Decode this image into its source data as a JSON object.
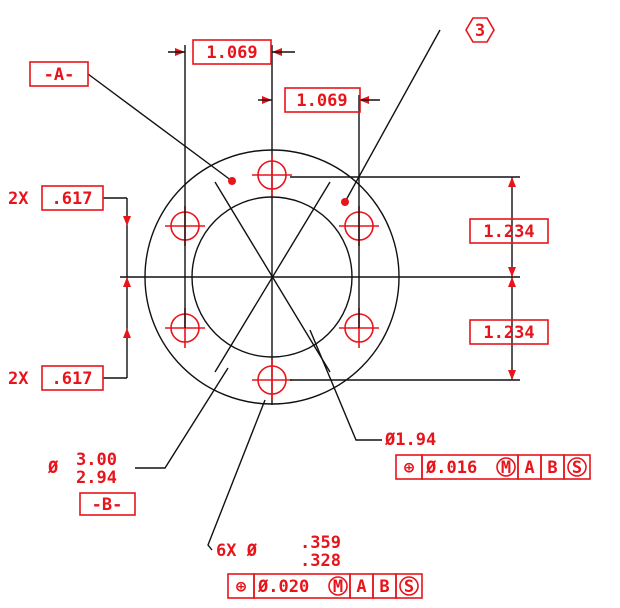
{
  "dimensions": {
    "top_spacing": "1.069",
    "mid_spacing": "1.069",
    "upper_height": "1.234",
    "lower_height": "1.234",
    "upper_offset": {
      "count": "2X",
      "value": ".617"
    },
    "lower_offset": {
      "count": "2X",
      "value": ".617"
    }
  },
  "datums": {
    "a": "-A-",
    "b": "-B-"
  },
  "note": "3",
  "inner_diameter": {
    "label": "Ø1.94",
    "frame": [
      "⊕",
      "Ø.016",
      "M",
      "A",
      "B",
      "S"
    ]
  },
  "outer_diameter": {
    "symbol": "Ø",
    "upper": "3.00",
    "lower": "2.94"
  },
  "holes": {
    "count": "6X Ø",
    "upper": ".359",
    "lower": ".328",
    "frame": [
      "⊕",
      "Ø.020",
      "M",
      "A",
      "B",
      "S"
    ]
  }
}
